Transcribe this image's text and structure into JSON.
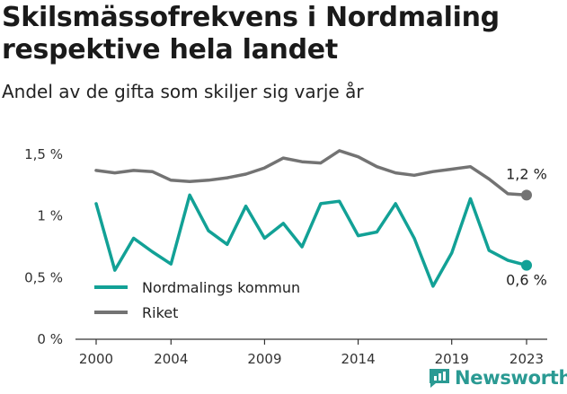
{
  "title_line1": "Skilsmässofrekvens i Nordmaling",
  "title_line2": "respektive hela landet",
  "subtitle": "Andel av de gifta som skiljer sig varje år",
  "brand": {
    "name": "Newsworthy",
    "color": "#2a9a93"
  },
  "chart_data": {
    "type": "line",
    "x": [
      2000,
      2001,
      2002,
      2003,
      2004,
      2005,
      2006,
      2007,
      2008,
      2009,
      2010,
      2011,
      2012,
      2013,
      2014,
      2015,
      2016,
      2017,
      2018,
      2019,
      2020,
      2021,
      2022,
      2023
    ],
    "series": [
      {
        "name": "Nordmalings kommun",
        "color": "#12a196",
        "values": [
          1.1,
          0.56,
          0.82,
          0.71,
          0.61,
          1.17,
          0.88,
          0.77,
          1.08,
          0.82,
          0.94,
          0.75,
          1.1,
          1.12,
          0.84,
          0.87,
          1.1,
          0.82,
          0.43,
          0.7,
          1.14,
          0.72,
          0.64,
          0.6
        ],
        "end_label": "0,6 %"
      },
      {
        "name": "Riket",
        "color": "#737373",
        "values": [
          1.37,
          1.35,
          1.37,
          1.36,
          1.29,
          1.28,
          1.29,
          1.31,
          1.34,
          1.39,
          1.47,
          1.44,
          1.43,
          1.53,
          1.48,
          1.4,
          1.35,
          1.33,
          1.36,
          1.38,
          1.4,
          1.3,
          1.18,
          1.17
        ],
        "end_label": "1,2 %"
      }
    ],
    "x_ticks": [
      2000,
      2004,
      2009,
      2014,
      2019,
      2023
    ],
    "x_tick_labels": [
      "2000",
      "2004",
      "2009",
      "2014",
      "2019",
      "2023"
    ],
    "y_ticks": [
      0,
      0.5,
      1,
      1.5
    ],
    "y_tick_labels": [
      "0 %",
      "0,5 %",
      "1 %",
      "1,5 %"
    ],
    "ylim": [
      0,
      1.5
    ],
    "xlim": [
      2000,
      2023
    ],
    "grid": false,
    "legend": "bottom-left"
  }
}
